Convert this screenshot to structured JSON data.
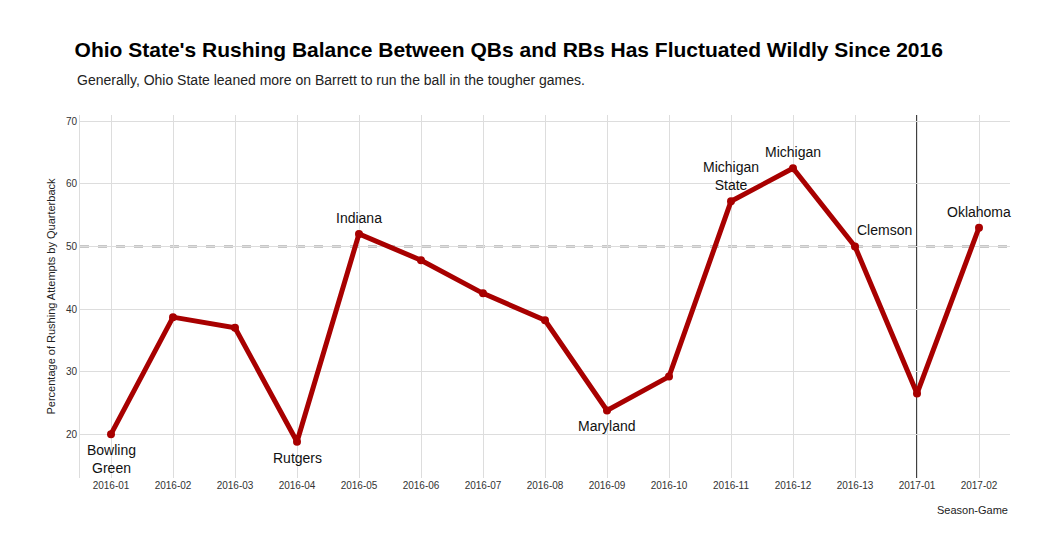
{
  "chart_data": {
    "type": "line",
    "title": "Ohio State's Rushing Balance Between QBs and RBs Has Fluctuated Wildly Since 2016",
    "subtitle": "Generally, Ohio State leaned more on Barrett to run the ball in the tougher games.",
    "x_label": "Season-Game",
    "y_label": "Percentage of Rushing Attempts by Quarterback",
    "categories": [
      "2016-01",
      "2016-02",
      "2016-03",
      "2016-04",
      "2016-05",
      "2016-06",
      "2016-07",
      "2016-08",
      "2016-09",
      "2016-10",
      "2016-11",
      "2016-12",
      "2016-13",
      "2017-01",
      "2017-02"
    ],
    "values": [
      20,
      38.7,
      37,
      18.8,
      52,
      47.8,
      42.5,
      38.2,
      23.8,
      29.2,
      57.2,
      62.5,
      50,
      26.5,
      53
    ],
    "color": "#a80000",
    "marker": "circle",
    "line_style": "solid",
    "ylim": [
      13,
      71
    ],
    "yticks": [
      20,
      30,
      40,
      50,
      60,
      70
    ],
    "grid": true,
    "hline": 50,
    "vline": "2017-01",
    "annotations": [
      {
        "x": "2016-01",
        "text": "Bowling\nGreen"
      },
      {
        "x": "2016-04",
        "text": "Rutgers"
      },
      {
        "x": "2016-05",
        "text": "Indiana"
      },
      {
        "x": "2016-09",
        "text": "Maryland"
      },
      {
        "x": "2016-11",
        "text": "Michigan\nState"
      },
      {
        "x": "2016-12",
        "text": "Michigan"
      },
      {
        "x": "2016-13",
        "text": "Clemson"
      },
      {
        "x": "2017-02",
        "text": "Oklahoma"
      }
    ]
  }
}
